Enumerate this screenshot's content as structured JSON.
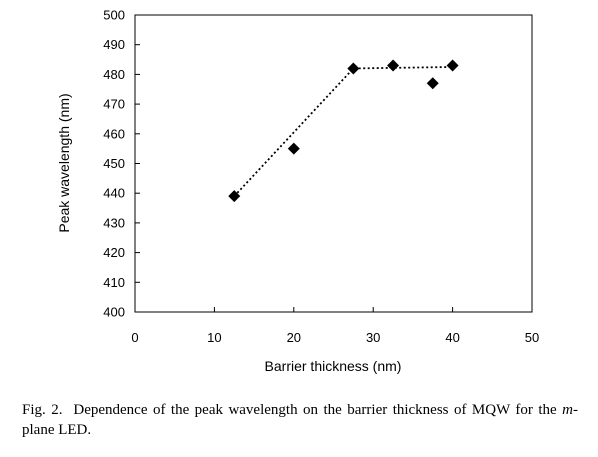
{
  "chart_data": {
    "type": "scatter",
    "xlabel": "Barrier thickness (nm)",
    "ylabel": "Peak wavelength (nm)",
    "xlim": [
      0,
      50
    ],
    "ylim": [
      400,
      500
    ],
    "xticks": [
      0,
      10,
      20,
      30,
      40,
      50
    ],
    "yticks": [
      400,
      410,
      420,
      430,
      440,
      450,
      460,
      470,
      480,
      490,
      500
    ],
    "grid": false,
    "points": [
      {
        "x": 12.5,
        "y": 439
      },
      {
        "x": 20,
        "y": 455
      },
      {
        "x": 27.5,
        "y": 482
      },
      {
        "x": 32.5,
        "y": 483
      },
      {
        "x": 37.5,
        "y": 477
      },
      {
        "x": 40,
        "y": 483
      }
    ],
    "trend_line": {
      "style": "dotted",
      "points": [
        {
          "x": 12.5,
          "y": 439
        },
        {
          "x": 27.5,
          "y": 482
        },
        {
          "x": 40,
          "y": 482.5
        }
      ]
    },
    "marker": "diamond",
    "marker_color": "#000000"
  },
  "caption": {
    "prefix": "Fig. 2.",
    "part1": "Dependence of the peak wavelength on the barrier thickness of MQW for the ",
    "italic": "m",
    "part2": "-plane LED."
  }
}
